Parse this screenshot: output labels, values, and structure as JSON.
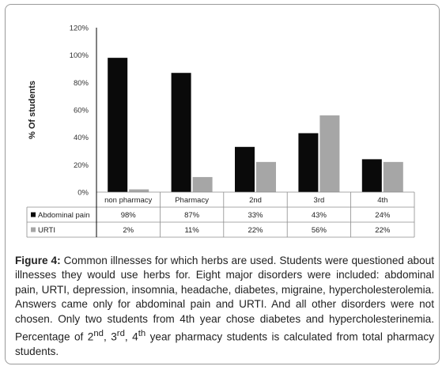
{
  "chart_data": {
    "type": "bar",
    "title": "",
    "xlabel": "",
    "ylabel": "% Of students",
    "ylim": [
      0,
      120
    ],
    "yticks": [
      0,
      20,
      40,
      60,
      80,
      100,
      120
    ],
    "ytick_labels": [
      "0%",
      "20%",
      "40%",
      "60%",
      "80%",
      "100%",
      "120%"
    ],
    "categories": [
      "non pharmacy",
      "Pharmacy",
      "2nd",
      "3rd",
      "4th"
    ],
    "series": [
      {
        "name": "Abdominal pain",
        "values": [
          98,
          87,
          33,
          43,
          24
        ],
        "labels": [
          "98%",
          "87%",
          "33%",
          "43%",
          "24%"
        ],
        "color": "#0a0a0a"
      },
      {
        "name": "URTI",
        "values": [
          2,
          11,
          22,
          56,
          22
        ],
        "labels": [
          "2%",
          "11%",
          "22%",
          "56%",
          "22%"
        ],
        "color": "#a6a6a6"
      }
    ],
    "grid": false,
    "legend": "data-table-rows"
  },
  "caption": {
    "label": "Figure 4:",
    "text": " Common illnesses for which herbs are used. Students were questioned about illnesses they would use herbs for. Eight major disorders were included: abdominal pain, URTI, depression, insomnia, headache, diabetes, migraine, hypercholesterolemia. Answers came only for abdominal pain and URTI. And all other disorders were not chosen. Only two students from 4th year chose diabetes and hypercholesterinemia. Percentage of 2",
    "sup1": "nd",
    "sep1": ", 3",
    "sup2": "rd",
    "sep2": ", 4",
    "sup3": "th",
    "tail": " year pharmacy students is calculated from total pharmacy students."
  }
}
